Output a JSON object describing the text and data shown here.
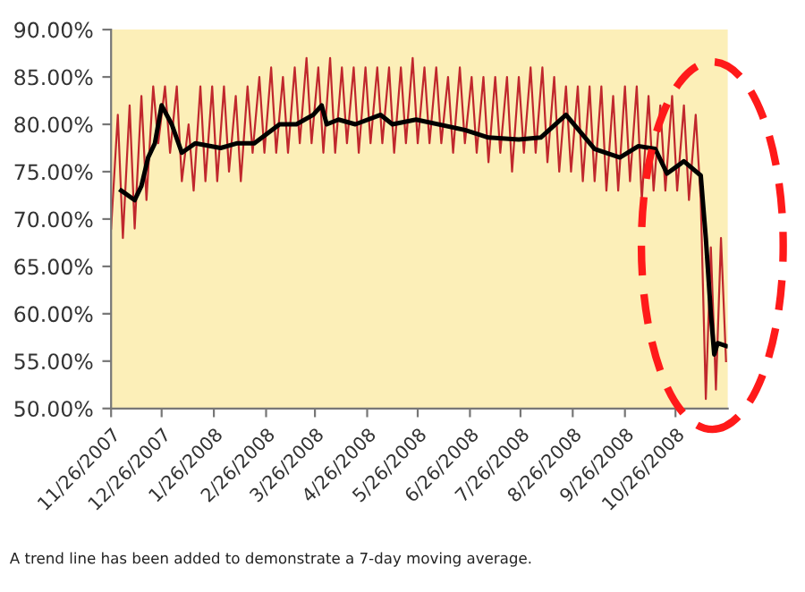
{
  "chart_data": {
    "type": "line",
    "xlim": [
      "2007-11-26",
      "2008-11-26"
    ],
    "xticks": [
      {
        "value": "2007-11-26",
        "label": "11/26/2007"
      },
      {
        "value": "2007-12-26",
        "label": "12/26/2007"
      },
      {
        "value": "2008-01-26",
        "label": "1/26/2008"
      },
      {
        "value": "2008-02-26",
        "label": "2/26/2008"
      },
      {
        "value": "2008-03-26",
        "label": "3/26/2008"
      },
      {
        "value": "2008-04-26",
        "label": "4/26/2008"
      },
      {
        "value": "2008-05-26",
        "label": "5/26/2008"
      },
      {
        "value": "2008-06-26",
        "label": "6/26/2008"
      },
      {
        "value": "2008-07-26",
        "label": "7/26/2008"
      },
      {
        "value": "2008-08-26",
        "label": "8/26/2008"
      },
      {
        "value": "2008-09-26",
        "label": "9/26/2008"
      },
      {
        "value": "2008-10-26",
        "label": "10/26/2008"
      }
    ],
    "ylim": [
      50,
      90
    ],
    "yticks": [
      {
        "value": 50,
        "label": "50.00%"
      },
      {
        "value": 55,
        "label": "55.00%"
      },
      {
        "value": 60,
        "label": "60.00%"
      },
      {
        "value": 65,
        "label": "65.00%"
      },
      {
        "value": 70,
        "label": "70.00%"
      },
      {
        "value": 75,
        "label": "75.00%"
      },
      {
        "value": 80,
        "label": "80.00%"
      },
      {
        "value": 85,
        "label": "85.00%"
      },
      {
        "value": 90,
        "label": "90.00%"
      }
    ],
    "grid": false,
    "annotations": [
      "A trend line has been added to demonstrate a 7-day moving average."
    ],
    "series": [
      {
        "color": "#c0282d",
        "x": [
          "2007-11-26",
          "2007-11-30",
          "2007-12-03",
          "2007-12-07",
          "2007-12-10",
          "2007-12-14",
          "2007-12-17",
          "2007-12-21",
          "2007-12-24",
          "2007-12-28",
          "2007-12-31",
          "2008-01-04",
          "2008-01-07",
          "2008-01-11",
          "2008-01-14",
          "2008-01-18",
          "2008-01-21",
          "2008-01-25",
          "2008-01-28",
          "2008-02-01",
          "2008-02-04",
          "2008-02-08",
          "2008-02-11",
          "2008-02-15",
          "2008-02-18",
          "2008-02-22",
          "2008-02-25",
          "2008-02-29",
          "2008-03-03",
          "2008-03-07",
          "2008-03-10",
          "2008-03-14",
          "2008-03-17",
          "2008-03-21",
          "2008-03-24",
          "2008-03-28",
          "2008-03-31",
          "2008-04-04",
          "2008-04-07",
          "2008-04-11",
          "2008-04-14",
          "2008-04-18",
          "2008-04-21",
          "2008-04-25",
          "2008-04-28",
          "2008-05-02",
          "2008-05-05",
          "2008-05-09",
          "2008-05-12",
          "2008-05-16",
          "2008-05-19",
          "2008-05-23",
          "2008-05-26",
          "2008-05-30",
          "2008-06-02",
          "2008-06-06",
          "2008-06-09",
          "2008-06-13",
          "2008-06-16",
          "2008-06-20",
          "2008-06-23",
          "2008-06-27",
          "2008-06-30",
          "2008-07-04",
          "2008-07-07",
          "2008-07-11",
          "2008-07-14",
          "2008-07-18",
          "2008-07-21",
          "2008-07-25",
          "2008-07-28",
          "2008-08-01",
          "2008-08-04",
          "2008-08-08",
          "2008-08-11",
          "2008-08-15",
          "2008-08-18",
          "2008-08-22",
          "2008-08-25",
          "2008-08-29",
          "2008-09-01",
          "2008-09-05",
          "2008-09-08",
          "2008-09-12",
          "2008-09-15",
          "2008-09-19",
          "2008-09-22",
          "2008-09-26",
          "2008-09-29",
          "2008-10-03",
          "2008-10-06",
          "2008-10-10",
          "2008-10-13",
          "2008-10-17",
          "2008-10-20",
          "2008-10-24",
          "2008-10-27",
          "2008-10-31",
          "2008-11-03",
          "2008-11-07",
          "2008-11-10",
          "2008-11-13",
          "2008-11-16",
          "2008-11-19",
          "2008-11-22",
          "2008-11-25"
        ],
        "values": [
          69,
          81,
          68,
          82,
          69,
          83,
          72,
          84,
          78,
          84,
          77,
          84,
          74,
          80,
          73,
          84,
          74,
          84,
          74,
          84,
          75,
          83,
          74,
          84,
          77,
          85,
          77,
          86,
          77,
          85,
          77,
          86,
          78,
          87,
          78,
          86,
          77,
          87,
          77,
          86,
          78,
          86,
          77,
          86,
          78,
          86,
          78,
          86,
          77,
          86,
          78,
          87,
          78,
          86,
          78,
          86,
          78,
          85,
          77,
          86,
          78,
          85,
          77,
          85,
          76,
          85,
          77,
          85,
          75,
          85,
          77,
          86,
          77,
          86,
          76,
          85,
          75,
          84,
          75,
          84,
          74,
          84,
          74,
          84,
          73,
          83,
          73,
          84,
          74,
          84,
          72,
          83,
          73,
          82,
          73,
          83,
          73,
          82,
          72,
          81,
          72,
          51,
          67,
          52,
          68,
          55
        ]
      },
      {
        "color": "#000000",
        "x": [
          "2007-12-02",
          "2007-12-10",
          "2007-12-14",
          "2007-12-18",
          "2007-12-22",
          "2007-12-26",
          "2008-01-01",
          "2008-01-07",
          "2008-01-15",
          "2008-01-30",
          "2008-02-09",
          "2008-02-19",
          "2008-03-05",
          "2008-03-15",
          "2008-03-25",
          "2008-03-30",
          "2008-04-02",
          "2008-04-09",
          "2008-04-19",
          "2008-05-04",
          "2008-05-11",
          "2008-05-25",
          "2008-06-23",
          "2008-07-07",
          "2008-07-25",
          "2008-08-07",
          "2008-08-22",
          "2008-09-08",
          "2008-09-23",
          "2008-10-04",
          "2008-10-14",
          "2008-10-21",
          "2008-10-31",
          "2008-11-10",
          "2008-11-13",
          "2008-11-16",
          "2008-11-18",
          "2008-11-20",
          "2008-11-25"
        ],
        "values": [
          73,
          72,
          73.5,
          76.5,
          78,
          82,
          80,
          77,
          78,
          77.5,
          78,
          78,
          80,
          80,
          81,
          82,
          80,
          80.5,
          80,
          81,
          80,
          80.5,
          79.4,
          78.6,
          78.4,
          78.6,
          81,
          77.4,
          76.5,
          77.7,
          77.4,
          74.8,
          76.1,
          74.6,
          68,
          60,
          55.7,
          56.9,
          56.6
        ]
      }
    ]
  }
}
